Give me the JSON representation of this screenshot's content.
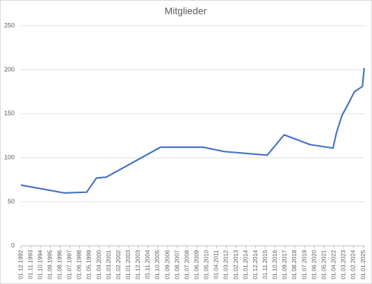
{
  "chart_data": {
    "type": "line",
    "title": "Mitglieder",
    "x": [
      "01.12.1992",
      "01.01.1997",
      "01.02.1999",
      "01.01.2000",
      "01.12.2000",
      "01.01.2006",
      "01.01.2010",
      "01.01.2012",
      "01.01.2016",
      "01.08.2017",
      "01.01.2020",
      "01.03.2022",
      "01.07.2022",
      "01.01.2023",
      "01.10.2023",
      "01.03.2024",
      "01.12.2024",
      "01.02.2025"
    ],
    "series": [
      {
        "name": "Mitglieder",
        "color": "#4472c4",
        "values": [
          69,
          60,
          61,
          77,
          78,
          112,
          112,
          107,
          103,
          126,
          115,
          111,
          129,
          148,
          165,
          175,
          181,
          202
        ]
      }
    ],
    "xlim": [
      "01.12.1992",
      "01.03.2025"
    ],
    "xticks": [
      "01.12.1992",
      "01.11.1993",
      "01.10.1994",
      "01.09.1995",
      "01.08.1996",
      "01.07.1997",
      "01.06.1998",
      "01.05.1999",
      "01.04.2000",
      "01.03.2001",
      "01.02.2002",
      "01.01.2003",
      "01.12.2003",
      "01.11.2004",
      "01.10.2005",
      "01.09.2006",
      "01.08.2007",
      "01.07.2008",
      "01.06.2009",
      "01.05.2010",
      "01.04.2011",
      "01.03.2012",
      "01.02.2013",
      "01.01.2014",
      "01.12.2014",
      "01.11.2015",
      "01.10.2016",
      "01.09.2017",
      "01.08.2018",
      "01.07.2019",
      "01.06.2020",
      "01.05.2021",
      "01.04.2022",
      "01.03.2023",
      "01.02.2024",
      "01.01.2025"
    ],
    "ylim": [
      0,
      250
    ],
    "yticks": [
      0,
      50,
      100,
      150,
      200,
      250
    ],
    "grid": true
  }
}
